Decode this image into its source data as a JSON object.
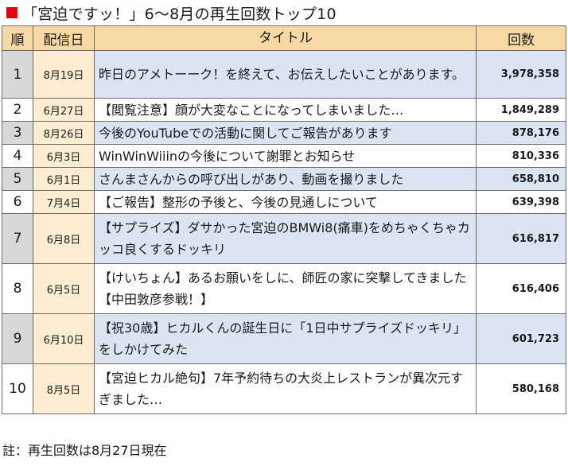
{
  "heading": {
    "title": "「宮迫ですッ！」6〜8月の再生回数トップ10",
    "bullet_color": "#e60012"
  },
  "colors": {
    "header_bg": "#f7d9a6",
    "rank_bg": "#d8d8d8",
    "date_bg": "#fdeed3",
    "row_alt_bg": "#dbe5f1",
    "row_bg": "#ffffff",
    "border": "#6b6b6b"
  },
  "table": {
    "headers": {
      "rank": "順",
      "date": "配信日",
      "title": "タイトル",
      "count": "回数"
    },
    "rows": [
      {
        "rank": "1",
        "date": "8月19日",
        "title": "昨日のアメトーーク！を終えて、お伝えしたいことがあります。",
        "count": "3,978,358"
      },
      {
        "rank": "2",
        "date": "6月27日",
        "title": "【閲覧注意】顔が大変なことになってしまいました…",
        "count": "1,849,289"
      },
      {
        "rank": "3",
        "date": "8月26日",
        "title": "今後のYouTubeでの活動に関してご報告があります",
        "count": "878,176"
      },
      {
        "rank": "4",
        "date": "6月3日",
        "title": "WinWinWiiinの今後について謝罪とお知らせ",
        "count": "810,336"
      },
      {
        "rank": "5",
        "date": "6月1日",
        "title": "さんまさんからの呼び出しがあり、動画を撮りました",
        "count": "658,810"
      },
      {
        "rank": "6",
        "date": "7月4日",
        "title": "【ご報告】整形の予後と、今後の見通しについて",
        "count": "639,398"
      },
      {
        "rank": "7",
        "date": "6月8日",
        "title": "【サプライズ】ダサかった宮迫のBMWi8(痛車)をめちゃくちゃカッコ良くするドッキリ",
        "count": "616,817"
      },
      {
        "rank": "8",
        "date": "6月5日",
        "title": "【けいちょん】あるお願いをしに、師匠の家に突撃してきました【中田敦彦参戦！】",
        "count": "616,406"
      },
      {
        "rank": "9",
        "date": "6月10日",
        "title": "【祝30歳】ヒカルくんの誕生日に「1日中サプライズドッキリ」をしかけてみた",
        "count": "601,723"
      },
      {
        "rank": "10",
        "date": "8月5日",
        "title": "【宮迫ヒカル絶句】7年予約待ちの大炎上レストランが異次元すぎました…",
        "count": "580,168"
      }
    ]
  },
  "footnote": "註：再生回数は8月27日現在"
}
